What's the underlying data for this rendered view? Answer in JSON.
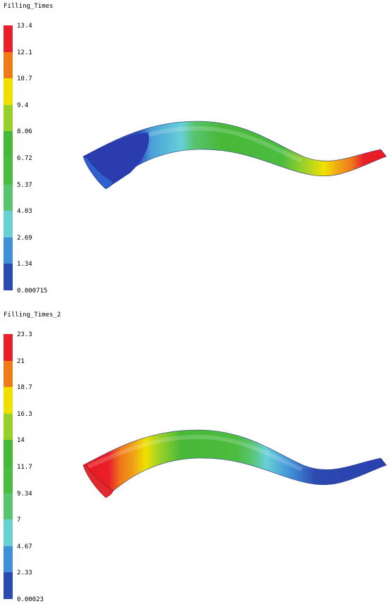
{
  "panels": [
    {
      "title": "Filling_Times",
      "legend_labels": [
        "13.4",
        "12.1",
        "10.7",
        "9.4",
        "8.06",
        "6.72",
        "5.37",
        "4.03",
        "2.69",
        "1.34",
        "0.000715"
      ],
      "legend_colors": [
        "#e8202a",
        "#f07a18",
        "#f0e000",
        "#98d02a",
        "#48b838",
        "#4cbc40",
        "#58c470",
        "#68d0d0",
        "#4090d8",
        "#2c4ab0"
      ]
    },
    {
      "title": "Filling_Times_2",
      "legend_labels": [
        "23.3",
        "21",
        "18.7",
        "16.3",
        "14",
        "11.7",
        "9.34",
        "7",
        "4.67",
        "2.33",
        "0.00023"
      ],
      "legend_colors": [
        "#e8202a",
        "#f07a18",
        "#f0e000",
        "#98d02a",
        "#48b838",
        "#4cbc40",
        "#58c470",
        "#68d0d0",
        "#4090d8",
        "#2c4ab0"
      ]
    }
  ]
}
